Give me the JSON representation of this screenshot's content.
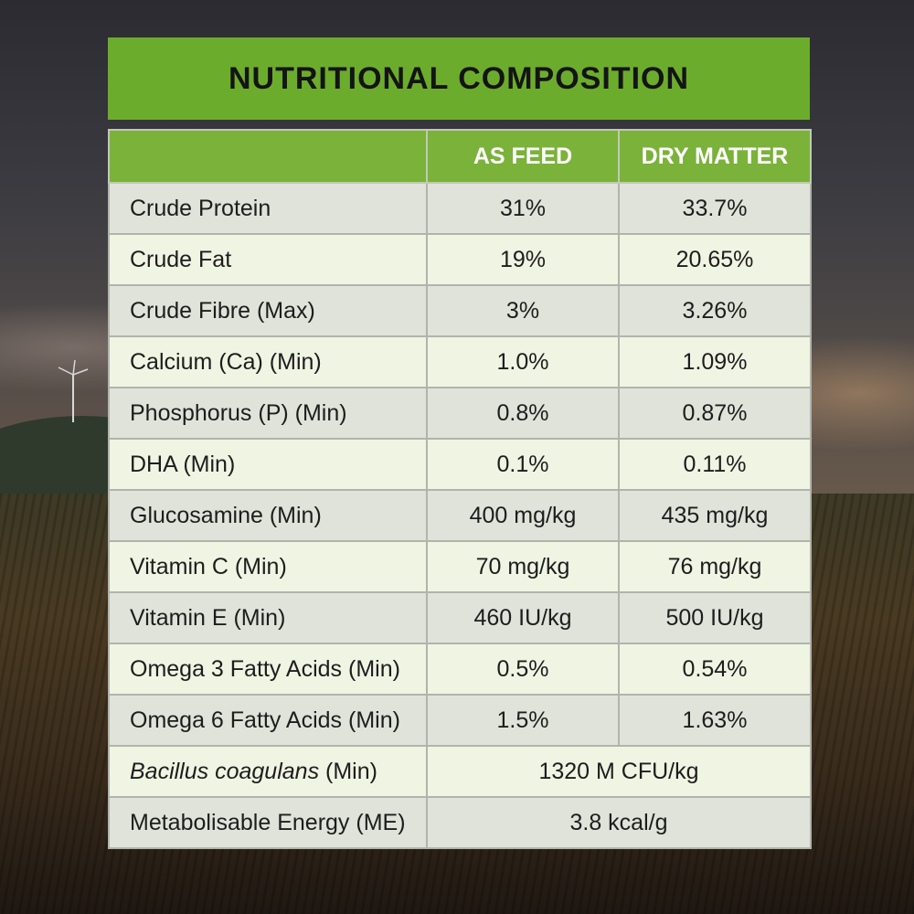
{
  "title": "NUTRITIONAL COMPOSITION",
  "columns": [
    "",
    "AS FEED",
    "DRY MATTER"
  ],
  "rows": [
    {
      "label": "Crude Protein",
      "as_feed": "31%",
      "dry_matter": "33.7%"
    },
    {
      "label": "Crude Fat",
      "as_feed": "19%",
      "dry_matter": "20.65%"
    },
    {
      "label": "Crude Fibre (Max)",
      "as_feed": "3%",
      "dry_matter": "3.26%"
    },
    {
      "label": "Calcium (Ca) (Min)",
      "as_feed": "1.0%",
      "dry_matter": "1.09%"
    },
    {
      "label": "Phosphorus (P) (Min)",
      "as_feed": "0.8%",
      "dry_matter": "0.87%"
    },
    {
      "label": "DHA (Min)",
      "as_feed": "0.1%",
      "dry_matter": "0.11%"
    },
    {
      "label": "Glucosamine (Min)",
      "as_feed": "400 mg/kg",
      "dry_matter": "435 mg/kg"
    },
    {
      "label": "Vitamin C (Min)",
      "as_feed": "70 mg/kg",
      "dry_matter": "76 mg/kg"
    },
    {
      "label": "Vitamin E (Min)",
      "as_feed": "460 IU/kg",
      "dry_matter": "500 IU/kg"
    },
    {
      "label": "Omega 3 Fatty Acids (Min)",
      "as_feed": "0.5%",
      "dry_matter": "0.54%"
    },
    {
      "label": "Omega 6 Fatty Acids (Min)",
      "as_feed": "1.5%",
      "dry_matter": "1.63%"
    }
  ],
  "merged_rows": [
    {
      "label_italic": "Bacillus coagulans",
      "label_suffix": " (Min)",
      "value": "1320 M CFU/kg"
    },
    {
      "label": "Metabolisable Energy (ME)",
      "value": "3.8 kcal/g"
    }
  ],
  "colors": {
    "title_bar": "#6cac2d",
    "header": "#7ab23a",
    "row_dark": "#dfe3d9",
    "row_light": "#f0f4e3"
  }
}
